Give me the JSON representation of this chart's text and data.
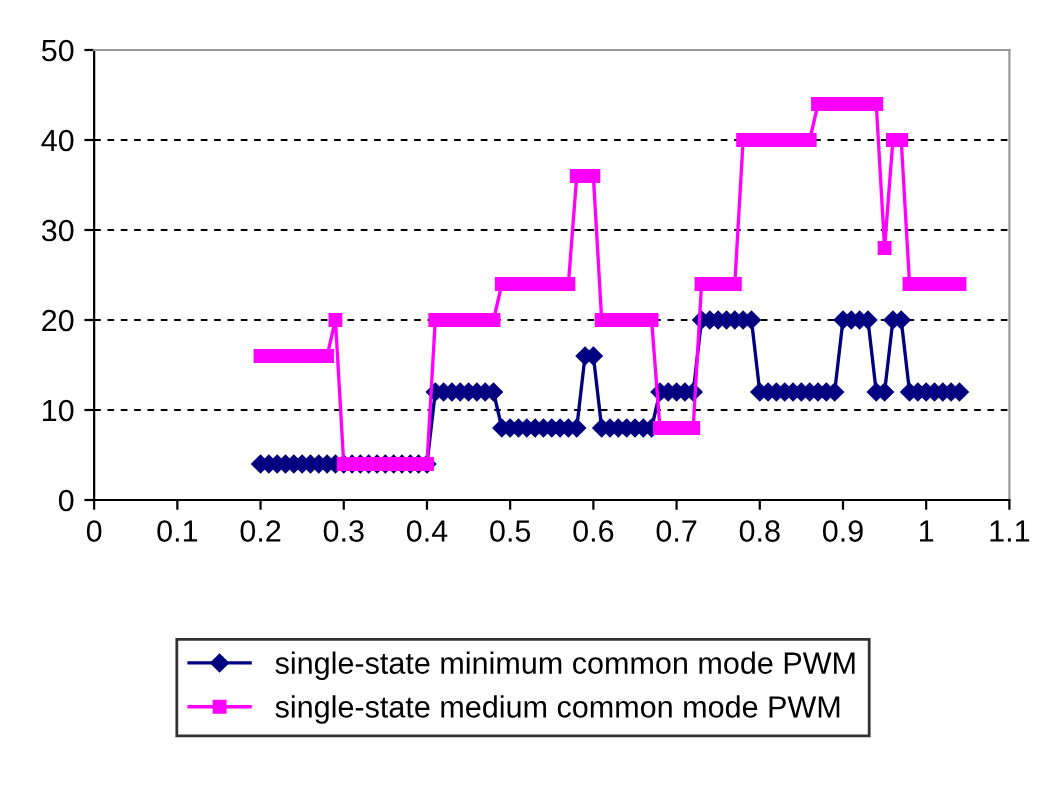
{
  "chart_data": {
    "type": "line",
    "x": [
      0.2,
      0.21,
      0.22,
      0.23,
      0.24,
      0.25,
      0.26,
      0.27,
      0.28,
      0.29,
      0.3,
      0.31,
      0.32,
      0.33,
      0.34,
      0.35,
      0.36,
      0.37,
      0.38,
      0.39,
      0.4,
      0.41,
      0.42,
      0.43,
      0.44,
      0.45,
      0.46,
      0.47,
      0.48,
      0.49,
      0.5,
      0.51,
      0.52,
      0.53,
      0.54,
      0.55,
      0.56,
      0.57,
      0.58,
      0.59,
      0.6,
      0.61,
      0.62,
      0.63,
      0.64,
      0.65,
      0.66,
      0.67,
      0.68,
      0.69,
      0.7,
      0.71,
      0.72,
      0.73,
      0.74,
      0.75,
      0.76,
      0.77,
      0.78,
      0.79,
      0.8,
      0.81,
      0.82,
      0.83,
      0.84,
      0.85,
      0.86,
      0.87,
      0.88,
      0.89,
      0.9,
      0.91,
      0.92,
      0.93,
      0.94,
      0.95,
      0.96,
      0.97,
      0.98,
      0.99,
      1.0,
      1.01,
      1.02,
      1.03,
      1.04
    ],
    "series": [
      {
        "name": "single-state minimum common mode PWM",
        "color": "#000080",
        "marker": "diamond",
        "values": [
          4,
          4,
          4,
          4,
          4,
          4,
          4,
          4,
          4,
          4,
          4,
          4,
          4,
          4,
          4,
          4,
          4,
          4,
          4,
          4,
          4,
          12,
          12,
          12,
          12,
          12,
          12,
          12,
          12,
          8,
          8,
          8,
          8,
          8,
          8,
          8,
          8,
          8,
          8,
          16,
          16,
          8,
          8,
          8,
          8,
          8,
          8,
          8,
          12,
          12,
          12,
          12,
          12,
          20,
          20,
          20,
          20,
          20,
          20,
          20,
          12,
          12,
          12,
          12,
          12,
          12,
          12,
          12,
          12,
          12,
          20,
          20,
          20,
          20,
          12,
          12,
          20,
          20,
          12,
          12,
          12,
          12,
          12,
          12,
          12
        ]
      },
      {
        "name": "single-state medium common mode PWM",
        "color": "#ff00ff",
        "marker": "square",
        "values": [
          16,
          16,
          16,
          16,
          16,
          16,
          16,
          16,
          16,
          20,
          4,
          4,
          4,
          4,
          4,
          4,
          4,
          4,
          4,
          4,
          4,
          20,
          20,
          20,
          20,
          20,
          20,
          20,
          20,
          24,
          24,
          24,
          24,
          24,
          24,
          24,
          24,
          24,
          36,
          36,
          36,
          20,
          20,
          20,
          20,
          20,
          20,
          20,
          8,
          8,
          8,
          8,
          8,
          24,
          24,
          24,
          24,
          24,
          40,
          40,
          40,
          40,
          40,
          40,
          40,
          40,
          40,
          44,
          44,
          44,
          44,
          44,
          44,
          44,
          44,
          28,
          40,
          40,
          24,
          24,
          24,
          24,
          24,
          24,
          24
        ]
      }
    ],
    "xlim": [
      0,
      1.1
    ],
    "xticks": [
      0,
      0.1,
      0.2,
      0.3,
      0.4,
      0.5,
      0.6,
      0.7,
      0.8,
      0.9,
      1,
      1.1
    ],
    "ylim": [
      0,
      50
    ],
    "yticks": [
      0,
      10,
      20,
      30,
      40,
      50
    ],
    "grid": "y",
    "legend": "bottom",
    "line_style": "solid"
  }
}
